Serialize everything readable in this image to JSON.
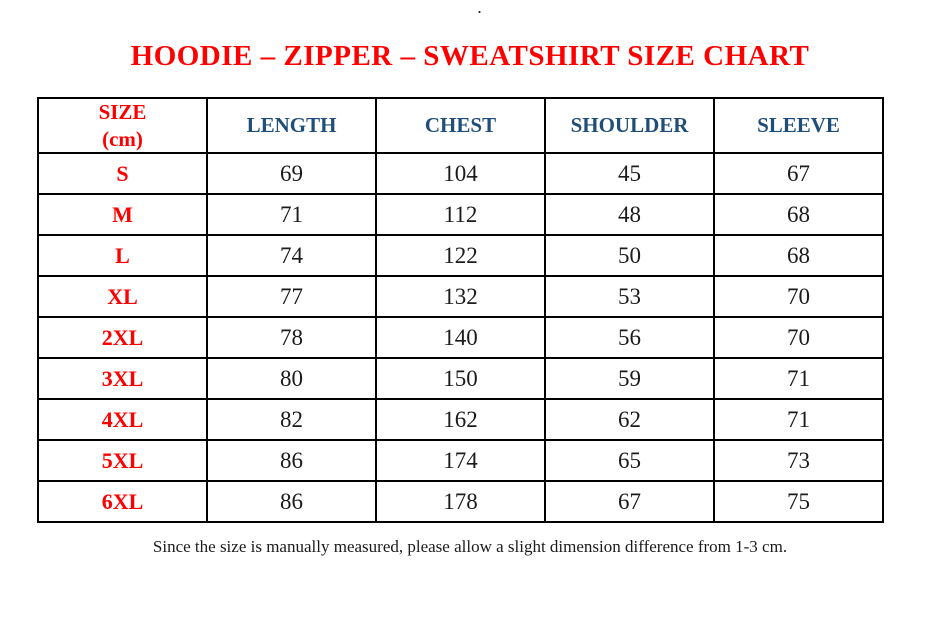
{
  "decoration": {
    "top_dot": "."
  },
  "title": "HOODIE – ZIPPER – SWEATSHIRT SIZE CHART",
  "table": {
    "size_header": {
      "line1": "SIZE",
      "line2": "(cm)"
    },
    "measure_columns": [
      "LENGTH",
      "CHEST",
      "SHOULDER",
      "SLEEVE"
    ],
    "rows": [
      {
        "size": "S",
        "length": "69",
        "chest": "104",
        "shoulder": "45",
        "sleeve": "67"
      },
      {
        "size": "M",
        "length": "71",
        "chest": "112",
        "shoulder": "48",
        "sleeve": "68"
      },
      {
        "size": "L",
        "length": "74",
        "chest": "122",
        "shoulder": "50",
        "sleeve": "68"
      },
      {
        "size": "XL",
        "length": "77",
        "chest": "132",
        "shoulder": "53",
        "sleeve": "70"
      },
      {
        "size": "2XL",
        "length": "78",
        "chest": "140",
        "shoulder": "56",
        "sleeve": "70"
      },
      {
        "size": "3XL",
        "length": "80",
        "chest": "150",
        "shoulder": "59",
        "sleeve": "71"
      },
      {
        "size": "4XL",
        "length": "82",
        "chest": "162",
        "shoulder": "62",
        "sleeve": "71"
      },
      {
        "size": "5XL",
        "length": "86",
        "chest": "174",
        "shoulder": "65",
        "sleeve": "73"
      },
      {
        "size": "6XL",
        "length": "86",
        "chest": "178",
        "shoulder": "67",
        "sleeve": "75"
      }
    ]
  },
  "chart_data": {
    "type": "table",
    "title": "HOODIE – ZIPPER – SWEATSHIRT SIZE CHART",
    "columns": [
      "SIZE (cm)",
      "LENGTH",
      "CHEST",
      "SHOULDER",
      "SLEEVE"
    ],
    "rows": [
      [
        "S",
        69,
        104,
        45,
        67
      ],
      [
        "M",
        71,
        112,
        48,
        68
      ],
      [
        "L",
        74,
        122,
        50,
        68
      ],
      [
        "XL",
        77,
        132,
        53,
        70
      ],
      [
        "2XL",
        78,
        140,
        56,
        70
      ],
      [
        "3XL",
        80,
        150,
        59,
        71
      ],
      [
        "4XL",
        82,
        162,
        62,
        71
      ],
      [
        "5XL",
        86,
        174,
        65,
        73
      ],
      [
        "6XL",
        86,
        178,
        67,
        75
      ]
    ]
  },
  "footer_note": "Since the size is manually measured, please allow a slight dimension difference from 1-3 cm.",
  "colors": {
    "title_red": "#ff0000",
    "header_blue": "#1f4e79",
    "body_text": "#1b1b1b",
    "border": "#000000"
  }
}
